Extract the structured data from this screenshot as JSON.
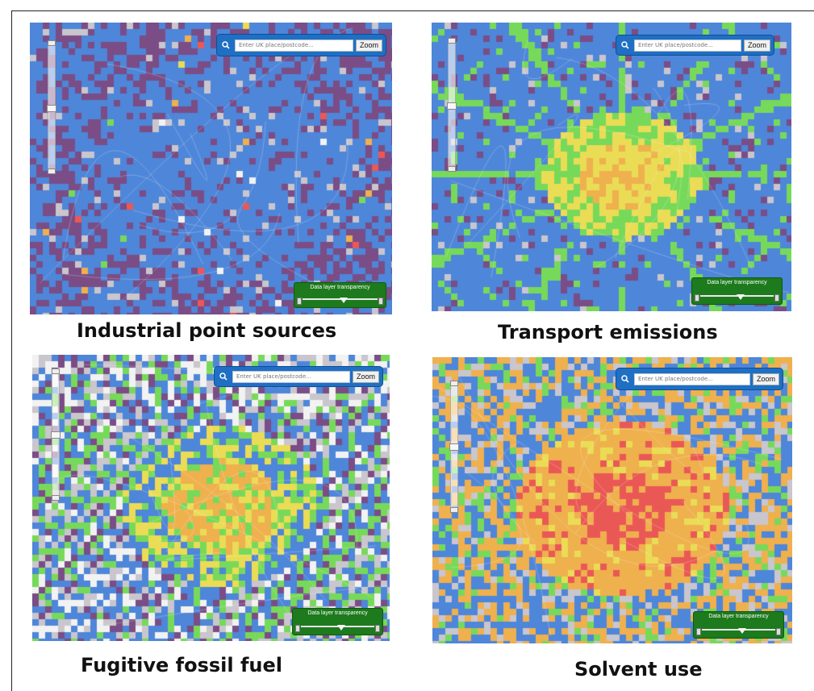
{
  "colors": {
    "water_blue": "#4e86d9",
    "purple": "#7a4d86",
    "grey": "#c9c6cd",
    "green": "#77d95a",
    "yellow": "#eadc55",
    "orange": "#efb04e",
    "red": "#ea5856",
    "white": "#f2f2f2",
    "panel_ui_blue": "#1f6fc4",
    "panel_ui_green": "#1d7a1d"
  },
  "panels": [
    {
      "id": "industrial",
      "caption": "Industrial point sources",
      "search": {
        "placeholder": "Enter UK place/postcode...",
        "zoom_label": "Zoom"
      },
      "transparency": {
        "label": "Data layer transparency",
        "level": 0.55
      },
      "has_zoom_slider": true,
      "zoom_slider_level": 0.5,
      "legend_icon": "search-icon"
    },
    {
      "id": "transport",
      "caption": "Transport emissions",
      "search": {
        "placeholder": "Enter UK place/postcode...",
        "zoom_label": "Zoom"
      },
      "transparency": {
        "label": "Data layer transparency",
        "level": 0.55
      },
      "has_zoom_slider": true,
      "zoom_slider_level": 0.5
    },
    {
      "id": "fugitive",
      "caption": "Fugitive fossil fuel",
      "search": {
        "placeholder": "Enter UK place/postcode...",
        "zoom_label": "Zoom"
      },
      "transparency": {
        "label": "Data layer transparency",
        "level": 0.55
      },
      "has_zoom_slider": true,
      "zoom_slider_level": 0.5
    },
    {
      "id": "solvent",
      "caption": "Solvent use",
      "search": {
        "placeholder": "Enter UK place/postcode...",
        "zoom_label": "Zoom"
      },
      "transparency": {
        "label": "Data layer transparency",
        "level": 0.55
      },
      "has_zoom_slider": true,
      "zoom_slider_level": 0.5
    }
  ]
}
